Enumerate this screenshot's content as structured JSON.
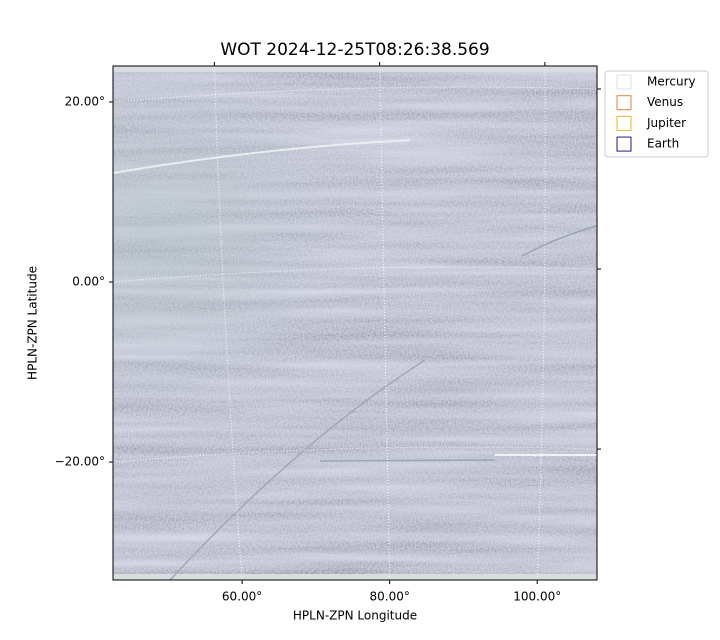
{
  "chart_data": {
    "type": "image",
    "title": "WOT 2024-12-25T08:26:38.569",
    "x_label": "HPLN-ZPN Longitude",
    "y_label": "HPLN-ZPN Latitude",
    "xlim": [
      42.5,
      108.1
    ],
    "ylim": [
      -33.1,
      24
    ],
    "xticks": [
      {
        "value": 60,
        "label": "60.00°"
      },
      {
        "value": 80,
        "label": "80.00°"
      },
      {
        "value": 100,
        "label": "100.00°"
      }
    ],
    "yticks": [
      {
        "value": -20,
        "label": "−20.00°"
      },
      {
        "value": 0,
        "label": "0.00°"
      },
      {
        "value": 20,
        "label": "20.00°"
      }
    ],
    "grid": true,
    "legend": "right",
    "series": [
      {
        "name": "Mercury",
        "color": "#dddddd"
      },
      {
        "name": "Venus",
        "color": "#e0803a"
      },
      {
        "name": "Jupiter",
        "color": "#e8b42a"
      },
      {
        "name": "Earth",
        "color": "#1a1a80"
      }
    ]
  }
}
